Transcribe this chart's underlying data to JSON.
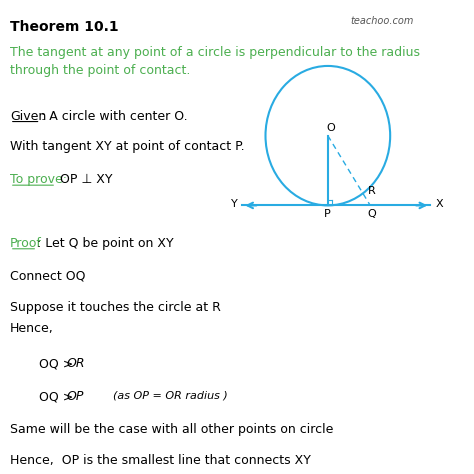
{
  "title": "Theorem 10.1",
  "subtitle": "The tangent at any point of a circle is perpendicular to the radius\nthrough the point of contact.",
  "watermark": "teachoo.com",
  "given_label": "Given",
  "given_text": ": A circle with center O.",
  "given_text2": "With tangent XY at point of contact P.",
  "toprove_label": "To prove:",
  "toprove_text": " OP ⊥ XY",
  "proof_label": "Proof",
  "proof_text1": ": Let Q be point on XY",
  "proof_text2": "Connect OQ",
  "proof_text3": "Suppose it touches the circle at R",
  "hence_text": "Hence,",
  "same_text": "Same will be the case with all other points on circle",
  "hence_text2": "Hence,  OP is the smallest line that connects XY",
  "circle_color": "#29ABE2",
  "tangent_color": "#29ABE2",
  "radius_color": "#29ABE2",
  "dashed_color": "#29ABE2",
  "bg_color": "#ffffff",
  "title_color": "#000000",
  "green_color": "#4CAF50",
  "gray_color": "#555555"
}
